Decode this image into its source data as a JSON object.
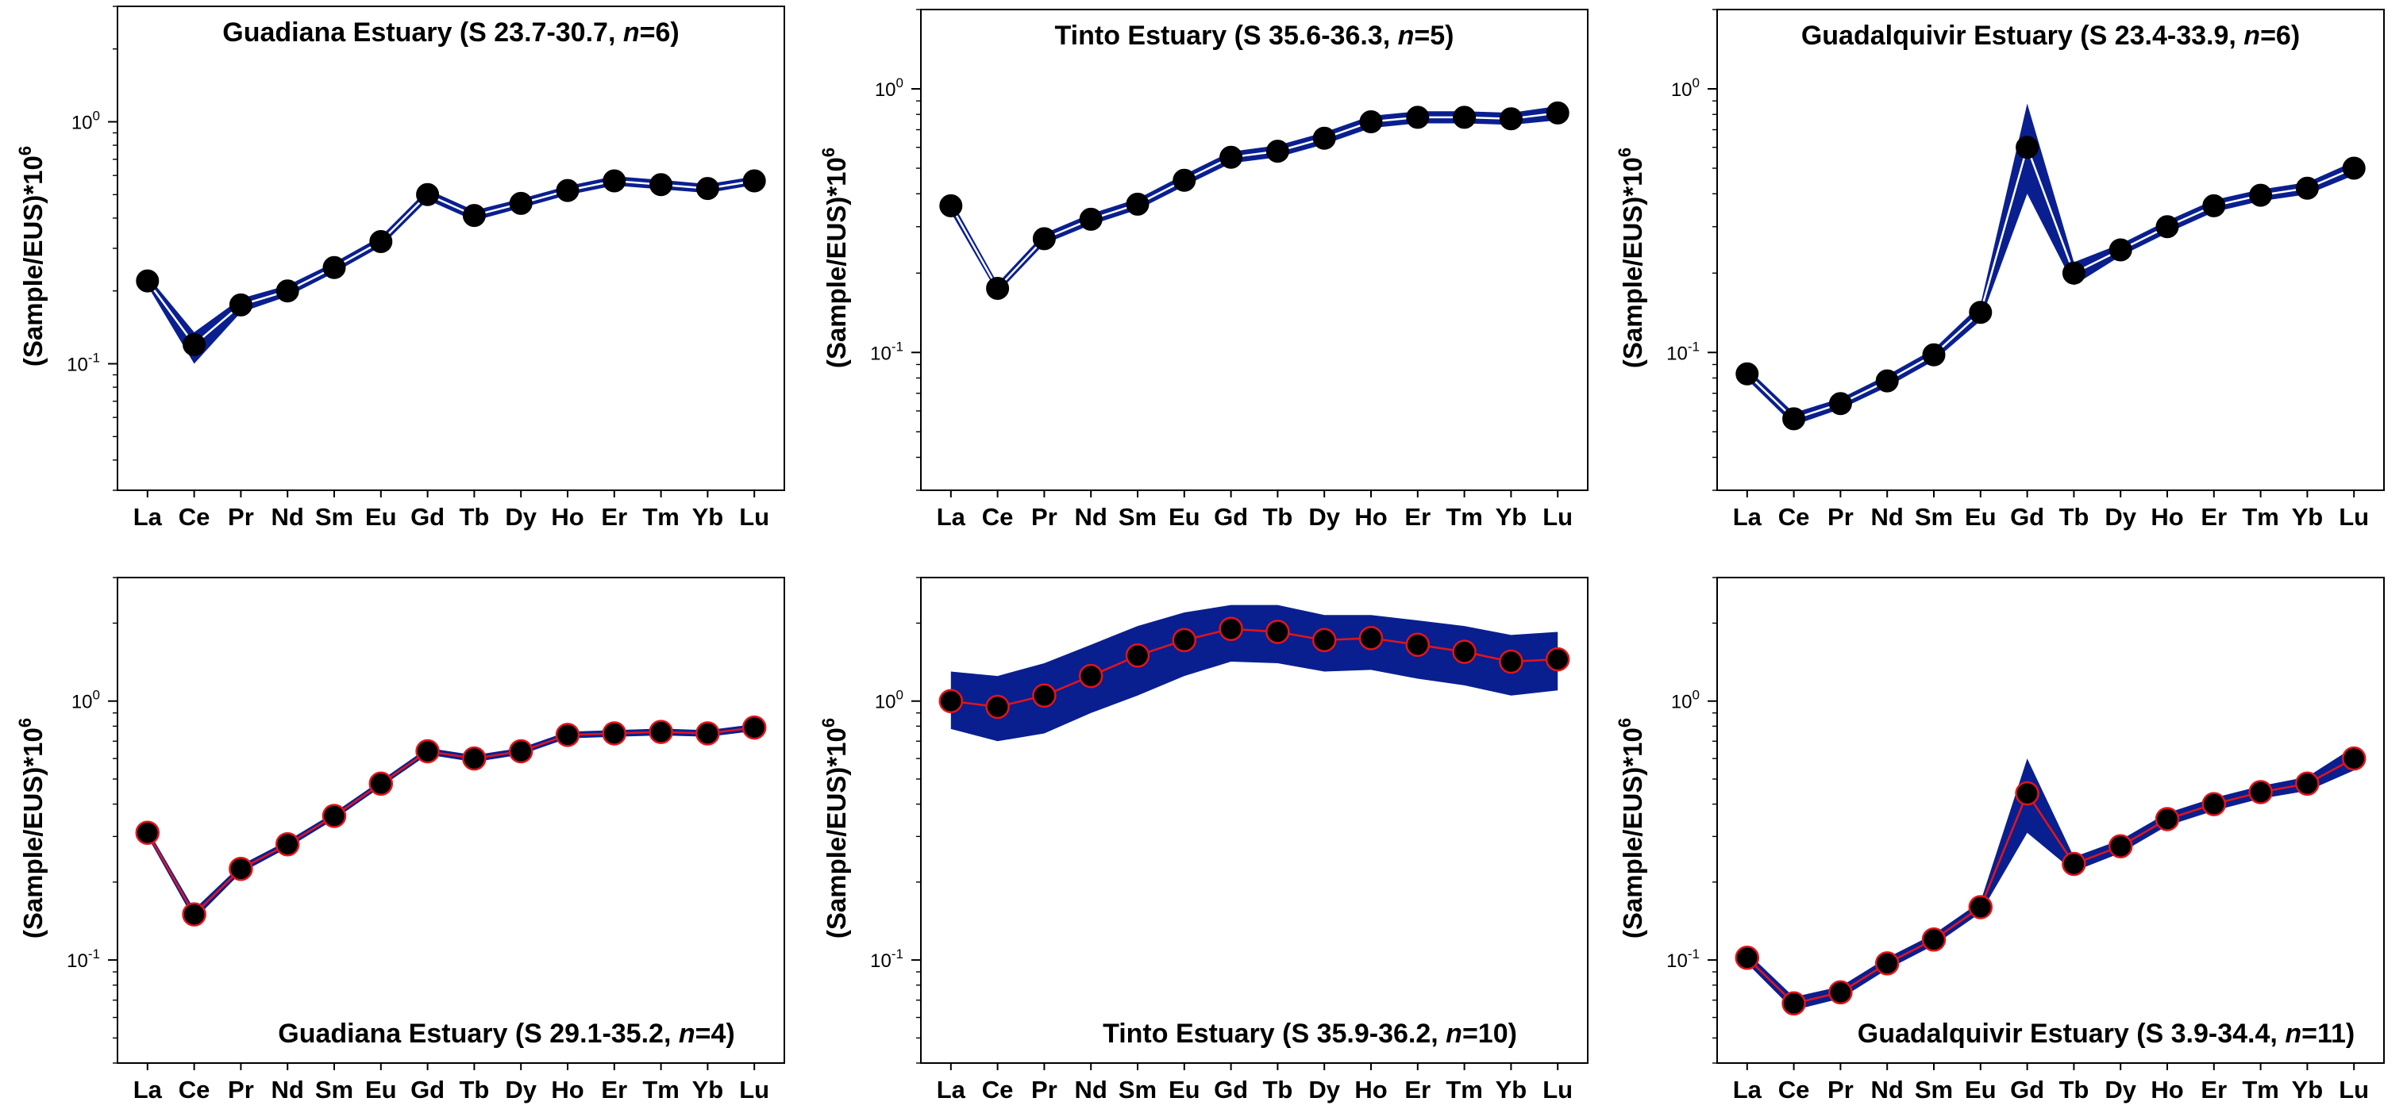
{
  "figure": {
    "y_axis_label": "(Sample/EUS)*10",
    "y_axis_label_exp": "6",
    "tick_base": "10",
    "tick_exp_0": "0",
    "tick_exp_neg1": "-1",
    "band_color": "#0a1f8f",
    "line_color_top": "#ffffff",
    "line_color_bottom": "#e3141b",
    "marker_color": "#000000",
    "elements": [
      "La",
      "Ce",
      "Pr",
      "Nd",
      "Sm",
      "Eu",
      "Gd",
      "Tb",
      "Dy",
      "Ho",
      "Er",
      "Tm",
      "Yb",
      "Lu"
    ]
  },
  "chart_data": [
    {
      "type": "line",
      "title": "Guadiana Estuary (S 23.7-30.7, n=6)",
      "title_parts": [
        "Guadiana Estuary (S 23.7-30.7, ",
        "n",
        "=6)"
      ],
      "title_position": "top",
      "yscale": "log",
      "ylim": [
        0.03,
        3.0
      ],
      "categories": [
        "La",
        "Ce",
        "Pr",
        "Nd",
        "Sm",
        "Eu",
        "Gd",
        "Tb",
        "Dy",
        "Ho",
        "Er",
        "Tm",
        "Yb",
        "Lu"
      ],
      "series": [
        {
          "name": "mean",
          "values": [
            0.22,
            0.12,
            0.175,
            0.2,
            0.25,
            0.32,
            0.5,
            0.41,
            0.46,
            0.52,
            0.57,
            0.55,
            0.53,
            0.57
          ]
        }
      ],
      "band": {
        "lower": [
          0.21,
          0.1,
          0.163,
          0.19,
          0.238,
          0.305,
          0.475,
          0.39,
          0.44,
          0.498,
          0.545,
          0.526,
          0.508,
          0.548
        ],
        "upper": [
          0.231,
          0.135,
          0.186,
          0.211,
          0.262,
          0.336,
          0.525,
          0.43,
          0.481,
          0.543,
          0.596,
          0.575,
          0.553,
          0.594
        ]
      }
    },
    {
      "type": "line",
      "title": "Tinto Estuary (S 35.6-36.3, n=5)",
      "title_parts": [
        "Tinto Estuary (S 35.6-36.3, ",
        "n",
        "=5)"
      ],
      "title_position": "top",
      "yscale": "log",
      "ylim": [
        0.03,
        2.0
      ],
      "categories": [
        "La",
        "Ce",
        "Pr",
        "Nd",
        "Sm",
        "Eu",
        "Gd",
        "Tb",
        "Dy",
        "Ho",
        "Er",
        "Tm",
        "Yb",
        "Lu"
      ],
      "series": [
        {
          "name": "mean",
          "values": [
            0.36,
            0.175,
            0.27,
            0.32,
            0.365,
            0.45,
            0.55,
            0.58,
            0.65,
            0.75,
            0.78,
            0.78,
            0.77,
            0.81
          ]
        }
      ],
      "band": {
        "lower": [
          0.34,
          0.168,
          0.258,
          0.305,
          0.348,
          0.428,
          0.522,
          0.55,
          0.616,
          0.71,
          0.74,
          0.74,
          0.73,
          0.76
        ],
        "upper": [
          0.38,
          0.183,
          0.283,
          0.336,
          0.383,
          0.473,
          0.578,
          0.61,
          0.684,
          0.79,
          0.822,
          0.822,
          0.812,
          0.86
        ]
      }
    },
    {
      "type": "line",
      "title": "Guadalquivir Estuary (S 23.4-33.9, n=6)",
      "title_parts": [
        "Guadalquivir Estuary (S 23.4-33.9, ",
        "n",
        "=6)"
      ],
      "title_position": "top",
      "yscale": "log",
      "ylim": [
        0.03,
        2.0
      ],
      "categories": [
        "La",
        "Ce",
        "Pr",
        "Nd",
        "Sm",
        "Eu",
        "Gd",
        "Tb",
        "Dy",
        "Ho",
        "Er",
        "Tm",
        "Yb",
        "Lu"
      ],
      "series": [
        {
          "name": "mean",
          "values": [
            0.083,
            0.056,
            0.064,
            0.078,
            0.098,
            0.142,
            0.6,
            0.2,
            0.245,
            0.3,
            0.36,
            0.395,
            0.42,
            0.5
          ]
        }
      ],
      "band": {
        "lower": [
          0.079,
          0.053,
          0.061,
          0.074,
          0.093,
          0.132,
          0.4,
          0.18,
          0.232,
          0.284,
          0.341,
          0.375,
          0.398,
          0.47
        ],
        "upper": [
          0.087,
          0.059,
          0.067,
          0.082,
          0.103,
          0.152,
          0.88,
          0.22,
          0.258,
          0.316,
          0.379,
          0.415,
          0.442,
          0.53
        ]
      }
    },
    {
      "type": "line",
      "title": "Guadiana Estuary (S 29.1-35.2, n=4)",
      "title_parts": [
        "Guadiana Estuary (S 29.1-35.2, ",
        "n",
        "=4)"
      ],
      "title_position": "bottom",
      "yscale": "log",
      "ylim": [
        0.04,
        3.0
      ],
      "categories": [
        "La",
        "Ce",
        "Pr",
        "Nd",
        "Sm",
        "Eu",
        "Gd",
        "Tb",
        "Dy",
        "Ho",
        "Er",
        "Tm",
        "Yb",
        "Lu"
      ],
      "series": [
        {
          "name": "mean",
          "values": [
            0.31,
            0.15,
            0.225,
            0.28,
            0.36,
            0.48,
            0.64,
            0.6,
            0.64,
            0.74,
            0.75,
            0.76,
            0.75,
            0.79
          ]
        }
      ],
      "band": {
        "lower": [
          0.3,
          0.143,
          0.217,
          0.271,
          0.349,
          0.466,
          0.621,
          0.582,
          0.621,
          0.718,
          0.728,
          0.737,
          0.728,
          0.766
        ],
        "upper": [
          0.32,
          0.157,
          0.233,
          0.289,
          0.371,
          0.494,
          0.659,
          0.618,
          0.659,
          0.762,
          0.772,
          0.783,
          0.772,
          0.814
        ]
      }
    },
    {
      "type": "line",
      "title": "Tinto Estuary (S 35.9-36.2, n=10)",
      "title_parts": [
        "Tinto Estuary (S 35.9-36.2, ",
        "n",
        "=10)"
      ],
      "title_position": "bottom",
      "yscale": "log",
      "ylim": [
        0.04,
        3.0
      ],
      "categories": [
        "La",
        "Ce",
        "Pr",
        "Nd",
        "Sm",
        "Eu",
        "Gd",
        "Tb",
        "Dy",
        "Ho",
        "Er",
        "Tm",
        "Yb",
        "Lu"
      ],
      "series": [
        {
          "name": "mean",
          "values": [
            1.0,
            0.95,
            1.05,
            1.25,
            1.5,
            1.72,
            1.9,
            1.85,
            1.72,
            1.75,
            1.65,
            1.55,
            1.42,
            1.45
          ]
        }
      ],
      "band": {
        "lower": [
          0.78,
          0.7,
          0.75,
          0.9,
          1.05,
          1.25,
          1.42,
          1.4,
          1.3,
          1.32,
          1.22,
          1.15,
          1.05,
          1.1
        ],
        "upper": [
          1.3,
          1.25,
          1.4,
          1.65,
          1.95,
          2.2,
          2.35,
          2.35,
          2.15,
          2.15,
          2.05,
          1.95,
          1.8,
          1.85
        ]
      }
    },
    {
      "type": "line",
      "title": "Guadalquivir Estuary (S 3.9-34.4, n=11)",
      "title_parts": [
        "Guadalquivir Estuary (S 3.9-34.4, ",
        "n",
        "=11)"
      ],
      "title_position": "bottom",
      "yscale": "log",
      "ylim": [
        0.04,
        3.0
      ],
      "categories": [
        "La",
        "Ce",
        "Pr",
        "Nd",
        "Sm",
        "Eu",
        "Gd",
        "Tb",
        "Dy",
        "Ho",
        "Er",
        "Tm",
        "Yb",
        "Lu"
      ],
      "series": [
        {
          "name": "mean",
          "values": [
            0.102,
            0.068,
            0.075,
            0.097,
            0.12,
            0.16,
            0.44,
            0.235,
            0.275,
            0.35,
            0.4,
            0.445,
            0.48,
            0.6
          ]
        }
      ],
      "band": {
        "lower": [
          0.097,
          0.064,
          0.071,
          0.092,
          0.114,
          0.152,
          0.31,
          0.22,
          0.259,
          0.33,
          0.377,
          0.42,
          0.45,
          0.54
        ],
        "upper": [
          0.107,
          0.072,
          0.079,
          0.102,
          0.126,
          0.168,
          0.6,
          0.25,
          0.291,
          0.37,
          0.423,
          0.47,
          0.51,
          0.665
        ]
      }
    }
  ]
}
